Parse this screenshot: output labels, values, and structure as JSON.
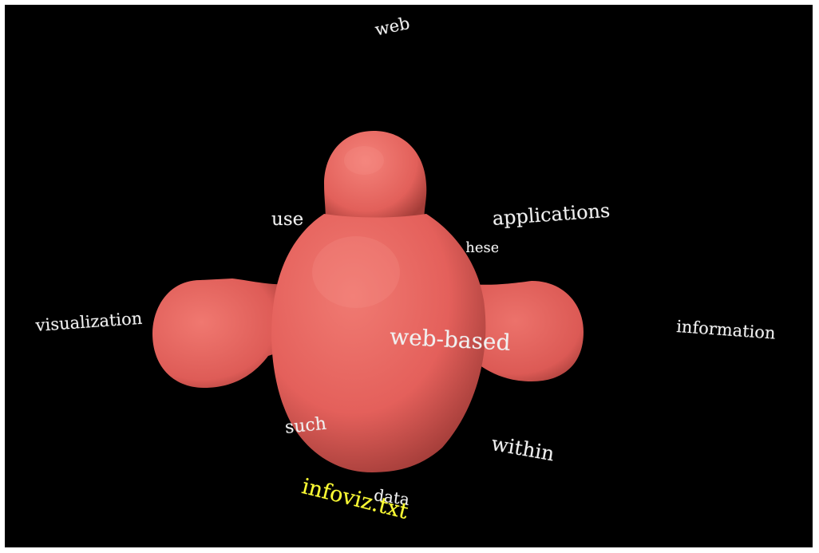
{
  "scene": {
    "background_color": "#000000",
    "blob_color": "#e8605c",
    "label_color": "#f0f0f0",
    "file_label_color": "#ffff33"
  },
  "labels": {
    "web": "web",
    "use": "use",
    "applications": "applications",
    "these": "these",
    "visualization": "visualization",
    "information": "information",
    "web_based": "web-based",
    "such": "such",
    "within": "within",
    "data": "data"
  },
  "file": {
    "name": "infoviz.txt"
  }
}
